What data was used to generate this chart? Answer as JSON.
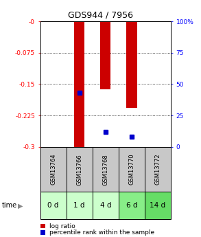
{
  "title": "GDS944 / 7956",
  "samples": [
    "GSM13764",
    "GSM13766",
    "GSM13768",
    "GSM13770",
    "GSM13772"
  ],
  "time_labels": [
    "0 d",
    "1 d",
    "4 d",
    "6 d",
    "14 d"
  ],
  "log_ratios": [
    0.0,
    -0.305,
    -0.163,
    -0.207,
    0.0
  ],
  "percentile_ranks": [
    null,
    0.43,
    0.12,
    0.08,
    null
  ],
  "ylim_left": [
    -0.3,
    0.0
  ],
  "ylim_right": [
    0,
    100
  ],
  "left_ticks": [
    0.0,
    -0.075,
    -0.15,
    -0.225,
    -0.3
  ],
  "right_ticks": [
    0,
    25,
    50,
    75,
    100
  ],
  "left_tick_labels": [
    "-0",
    "-0.075",
    "-0.15",
    "-0.225",
    "-0.3"
  ],
  "right_tick_labels": [
    "0",
    "25",
    "50",
    "75",
    "100%"
  ],
  "bar_color": "#cc0000",
  "dot_color": "#0000cc",
  "sample_bg_color": "#c8c8c8",
  "time_bg_colors": [
    "#ccffcc",
    "#ccffcc",
    "#ccffcc",
    "#88ee88",
    "#66dd66"
  ],
  "bar_width": 0.4,
  "title_fontsize": 9,
  "tick_fontsize": 6.5,
  "sample_fontsize": 6,
  "time_fontsize": 7.5,
  "legend_fontsize": 6.5
}
